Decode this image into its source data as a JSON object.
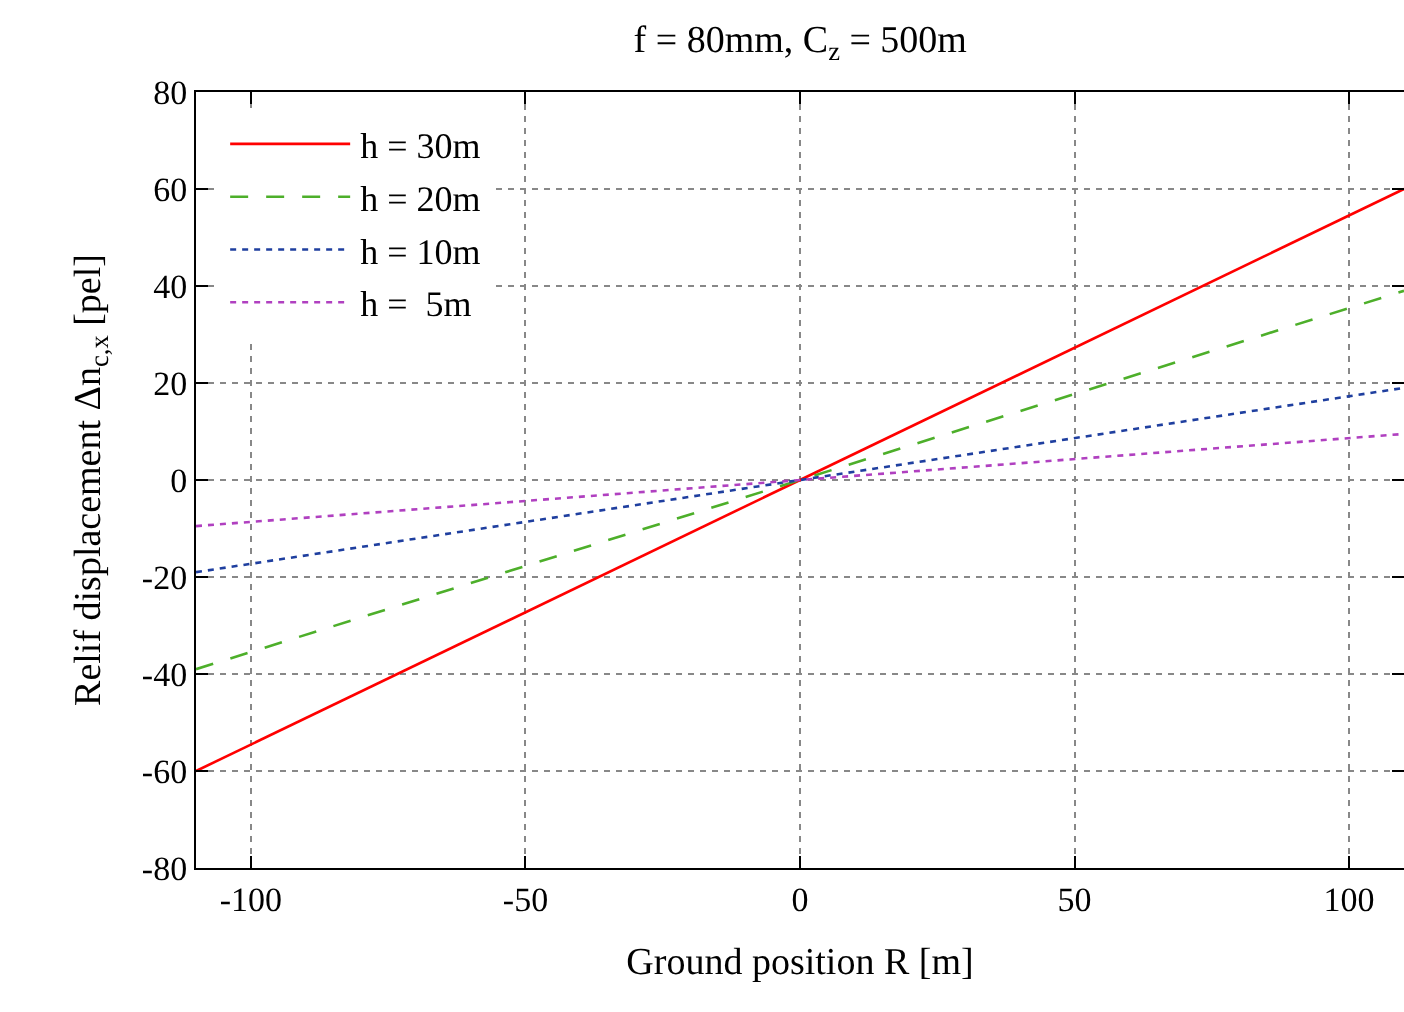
{
  "chart_data": {
    "type": "line",
    "title": "f = 80mm, C$_{z}$ = 500m",
    "xlabel": "Ground position R [m]",
    "ylabel": "Relif displacement Δn$_{c,x}$ [pel]",
    "x": [
      -110,
      0,
      110
    ],
    "series": [
      {
        "name": "h = 30m",
        "color": "#ff0000",
        "line_style": "solid",
        "values": [
          -60,
          0,
          60
        ]
      },
      {
        "name": "h = 20m",
        "color": "#4daf2a",
        "line_style": "dashed",
        "values": [
          -39,
          0,
          39
        ]
      },
      {
        "name": "h = 10m",
        "color": "#1f3f9f",
        "line_style": "dotted",
        "values": [
          -19,
          0,
          19
        ]
      },
      {
        "name": "h =  5m",
        "color": "#b040c0",
        "line_style": "dotted",
        "values": [
          -9.5,
          0,
          9.5
        ]
      }
    ],
    "xlim": [
      -110,
      110
    ],
    "xticks": [
      -100,
      -50,
      0,
      50,
      100
    ],
    "ylim": [
      -80,
      80
    ],
    "yticks": [
      -80,
      -60,
      -40,
      -20,
      0,
      20,
      40,
      60,
      80
    ],
    "grid": true,
    "legend": "top left",
    "marker": "none"
  }
}
